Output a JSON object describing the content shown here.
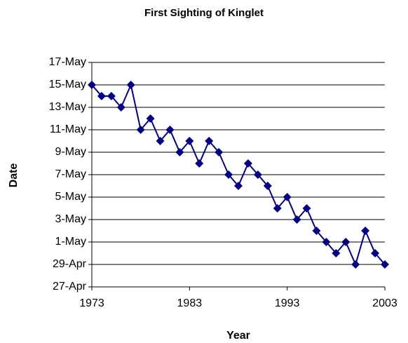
{
  "chart_data": {
    "type": "line",
    "title": "First Sighting of Kinglet",
    "x_label": "Year",
    "y_label": "Date",
    "x": [
      1973,
      1974,
      1975,
      1976,
      1977,
      1978,
      1979,
      1980,
      1981,
      1982,
      1983,
      1984,
      1985,
      1986,
      1987,
      1988,
      1989,
      1990,
      1991,
      1992,
      1993,
      1994,
      1995,
      1996,
      1997,
      1998,
      1999,
      2000,
      2001,
      2002,
      2003
    ],
    "series": [
      {
        "name": "Kinglet",
        "color": "#000080",
        "values": [
          135,
          134,
          134,
          133,
          135,
          131,
          132,
          130,
          131,
          129,
          130,
          128,
          130,
          129,
          127,
          126,
          128,
          127,
          126,
          124,
          125,
          123,
          124,
          122,
          121,
          120,
          121,
          119,
          122,
          120,
          119
        ]
      }
    ],
    "xlim": [
      1973,
      2003
    ],
    "xticks": [
      1973,
      1983,
      1993,
      2003
    ],
    "ylim": [
      117,
      137
    ],
    "yticks": [
      {
        "value": 117,
        "label": "27-Apr"
      },
      {
        "value": 119,
        "label": "29-Apr"
      },
      {
        "value": 121,
        "label": "1-May"
      },
      {
        "value": 123,
        "label": "3-May"
      },
      {
        "value": 125,
        "label": "5-May"
      },
      {
        "value": 127,
        "label": "7-May"
      },
      {
        "value": 129,
        "label": "9-May"
      },
      {
        "value": 131,
        "label": "11-May"
      },
      {
        "value": 133,
        "label": "13-May"
      },
      {
        "value": 135,
        "label": "15-May"
      },
      {
        "value": 137,
        "label": "17-May"
      }
    ],
    "grid": true
  }
}
